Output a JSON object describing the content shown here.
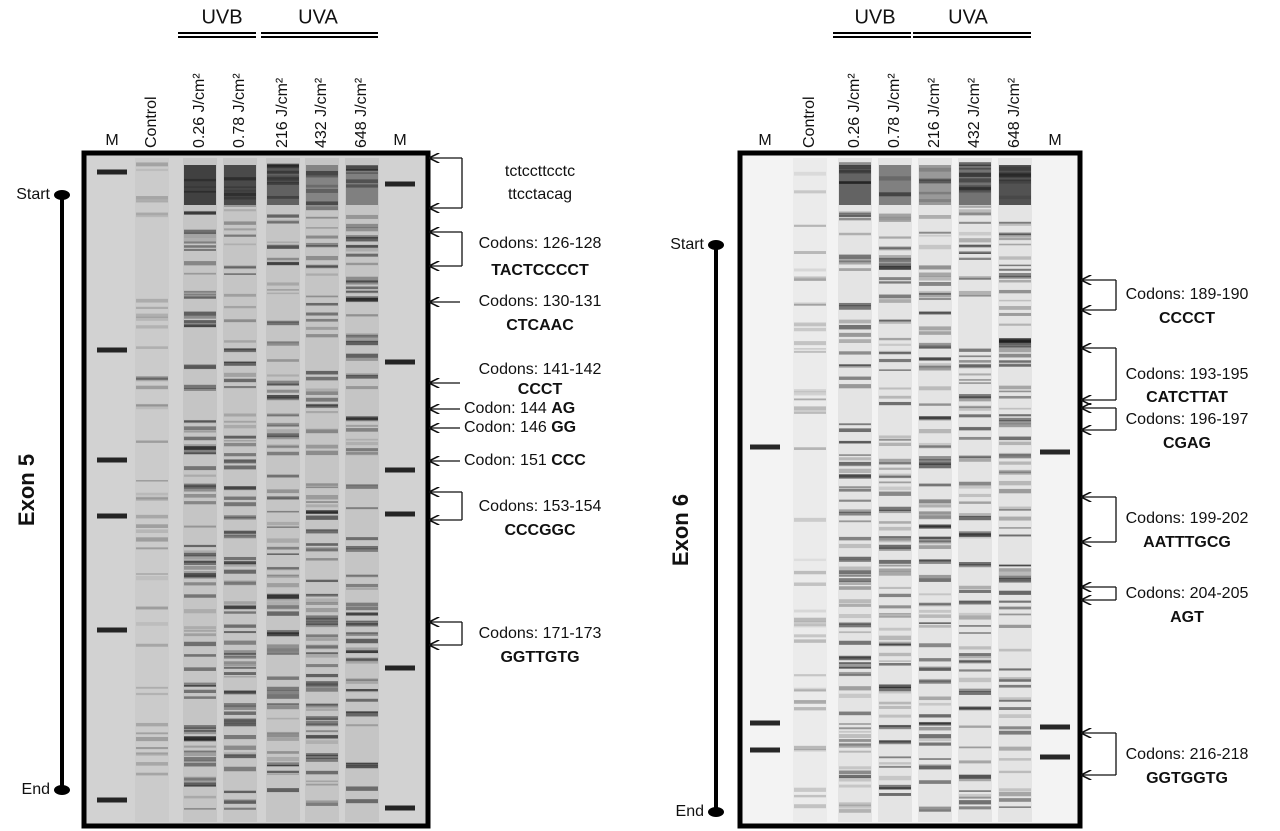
{
  "panels": [
    {
      "exon": "Exon 5",
      "start": "Start",
      "end": "End",
      "groups": [
        "UVB",
        "UVA"
      ],
      "lanes": [
        "M",
        "Control",
        "0.26 J/cm²",
        "0.78 J/cm²",
        "216 J/cm²",
        "432 J/cm²",
        "648 J/cm²",
        "M"
      ],
      "annotations": [
        {
          "text": "tctccttcctc",
          "seq": "ttcctacag"
        },
        {
          "text": "Codons: 126-128",
          "seq": "TACTCCCCT"
        },
        {
          "text": "Codons: 130-131",
          "seq": "CTCAAC"
        },
        {
          "text": "Codons: 141-142",
          "seq": "CCCT"
        },
        {
          "text": "Codon: 144",
          "seq": "AG"
        },
        {
          "text": "Codon: 146",
          "seq": "GG"
        },
        {
          "text": "Codon: 151",
          "seq": "CCC"
        },
        {
          "text": "Codons: 153-154",
          "seq": "CCCGGC"
        },
        {
          "text": "Codons: 171-173",
          "seq": "GGTTGTG"
        }
      ]
    },
    {
      "exon": "Exon 6",
      "start": "Start",
      "end": "End",
      "groups": [
        "UVB",
        "UVA"
      ],
      "lanes": [
        "M",
        "Control",
        "0.26 J/cm²",
        "0.78 J/cm²",
        "216 J/cm²",
        "432 J/cm²",
        "648 J/cm²",
        "M"
      ],
      "annotations": [
        {
          "text": "Codons: 189-190",
          "seq": "CCCCT"
        },
        {
          "text": "Codons: 193-195",
          "seq": "CATCTTAT"
        },
        {
          "text": "Codons: 196-197",
          "seq": "CGAG"
        },
        {
          "text": "Codons: 199-202",
          "seq": "AATTTGCG"
        },
        {
          "text": "Codons: 204-205",
          "seq": "AGT"
        },
        {
          "text": "Codons: 216-218",
          "seq": "GGTGGTG"
        }
      ]
    }
  ]
}
